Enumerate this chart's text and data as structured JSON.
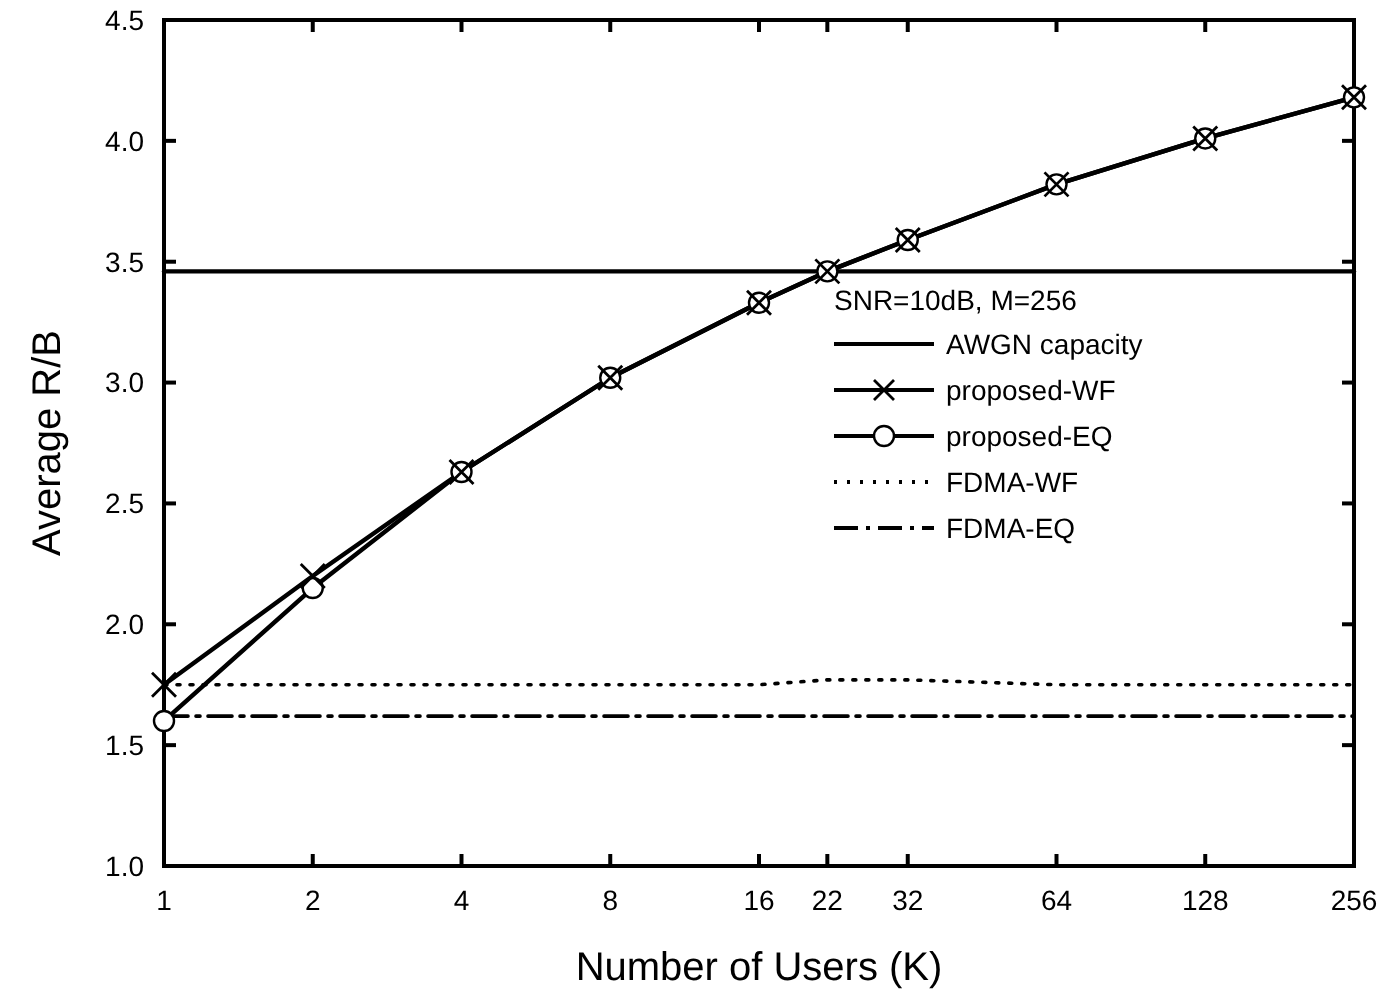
{
  "chart_data": {
    "type": "line",
    "xlabel": "Number of Users (K)",
    "ylabel": "Average R/B",
    "legend_title": "SNR=10dB, M=256",
    "x": [
      1,
      2,
      4,
      8,
      16,
      22,
      32,
      64,
      128,
      256
    ],
    "series": [
      {
        "name": "AWGN capacity",
        "color": "#000000",
        "x": [
          1,
          256
        ],
        "values": [
          3.46,
          3.46
        ],
        "marker": "none",
        "line_style": "solid"
      },
      {
        "name": "proposed-WF",
        "color": "#000000",
        "values": [
          1.75,
          2.2,
          2.63,
          3.02,
          3.33,
          3.46,
          3.59,
          3.82,
          4.01,
          4.18
        ],
        "marker": "cross",
        "line_style": "solid"
      },
      {
        "name": "proposed-EQ",
        "color": "#000000",
        "values": [
          1.6,
          2.15,
          2.63,
          3.02,
          3.33,
          3.46,
          3.59,
          3.82,
          4.01,
          4.18
        ],
        "marker": "circle",
        "line_style": "solid"
      },
      {
        "name": "FDMA-WF",
        "color": "#000000",
        "values": [
          1.75,
          1.75,
          1.75,
          1.75,
          1.75,
          1.77,
          1.77,
          1.75,
          1.75,
          1.75
        ],
        "marker": "none",
        "line_style": "dotted"
      },
      {
        "name": "FDMA-EQ",
        "color": "#000000",
        "values": [
          1.62,
          1.62,
          1.62,
          1.62,
          1.62,
          1.62,
          1.62,
          1.62,
          1.62,
          1.62
        ],
        "marker": "none",
        "line_style": "dashdot"
      }
    ],
    "log": "x",
    "xlim": [
      1,
      256
    ],
    "xticks": [
      1,
      2,
      4,
      8,
      16,
      22,
      32,
      64,
      128,
      256
    ],
    "ylim": [
      1.0,
      4.5
    ],
    "yticks": [
      {
        "value": 1.0,
        "label": "1.0"
      },
      {
        "value": 1.5,
        "label": "1.5"
      },
      {
        "value": 2.0,
        "label": "2.0"
      },
      {
        "value": 2.5,
        "label": "2.5"
      },
      {
        "value": 3.0,
        "label": "3.0"
      },
      {
        "value": 3.5,
        "label": "3.5"
      },
      {
        "value": 4.0,
        "label": "4.0"
      },
      {
        "value": 4.5,
        "label": "4.5"
      }
    ],
    "grid": false,
    "legend": "right"
  }
}
